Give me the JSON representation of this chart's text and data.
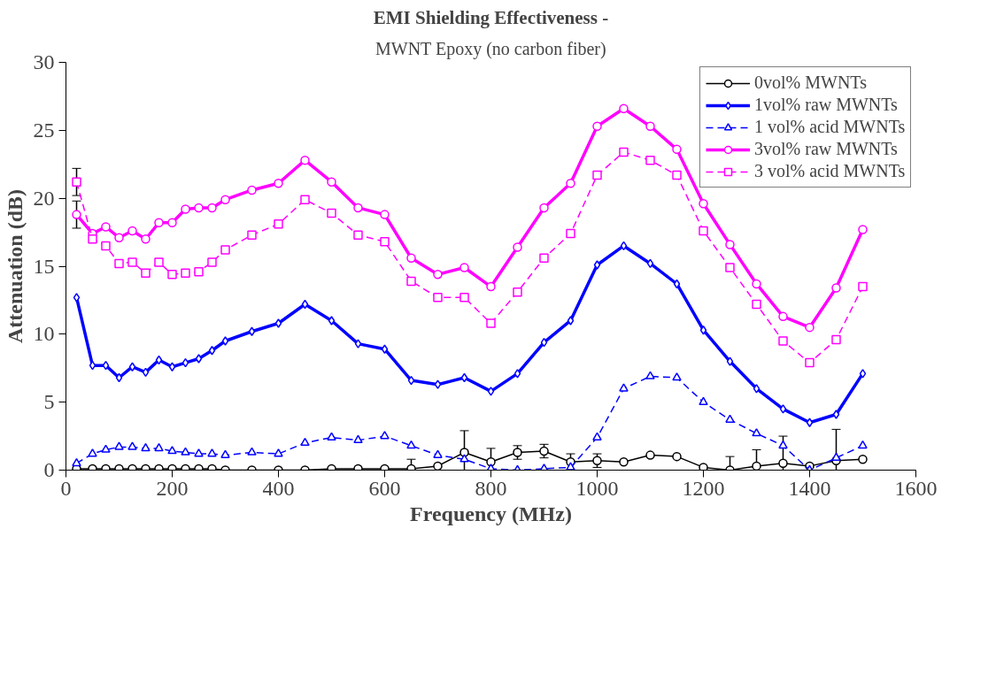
{
  "chart_data": {
    "type": "line",
    "title": "EMI Shielding Effectiveness -",
    "subtitle": "MWNT Epoxy (no carbon fiber)",
    "xlabel": "Frequency (MHz)",
    "ylabel": "Attenuation (dB)",
    "x": [
      20,
      50,
      75,
      100,
      125,
      150,
      175,
      200,
      225,
      250,
      275,
      300,
      350,
      400,
      450,
      500,
      550,
      600,
      650,
      700,
      750,
      800,
      850,
      900,
      950,
      1000,
      1050,
      1100,
      1150,
      1200,
      1250,
      1300,
      1350,
      1400,
      1450,
      1500
    ],
    "xlim": [
      0,
      1600
    ],
    "ylim": [
      0,
      30
    ],
    "xticks": [
      0,
      200,
      400,
      600,
      800,
      1000,
      1200,
      1400,
      1600
    ],
    "yticks": [
      0,
      5,
      10,
      15,
      20,
      25,
      30
    ],
    "grid": false,
    "legend": "top right",
    "series": [
      {
        "name": "0vol% MWNTs",
        "color": "#000000",
        "marker": "circle",
        "line_style": "solid",
        "values": [
          0.1,
          0.1,
          0.1,
          0.1,
          0.1,
          0.1,
          0.1,
          0.1,
          0.1,
          0.1,
          0.1,
          0.0,
          0.0,
          0.0,
          0.0,
          0.1,
          0.1,
          0.1,
          0.1,
          0.3,
          1.3,
          0.6,
          1.3,
          1.4,
          0.6,
          0.7,
          0.6,
          1.1,
          1.0,
          0.2,
          0.0,
          0.3,
          0.5,
          0.3,
          0.7,
          0.8
        ],
        "errors": [
          null,
          null,
          null,
          null,
          null,
          null,
          null,
          null,
          null,
          null,
          null,
          null,
          null,
          null,
          null,
          null,
          null,
          null,
          0.7,
          null,
          1.6,
          1.0,
          0.5,
          0.5,
          0.6,
          0.5,
          null,
          null,
          null,
          null,
          1.0,
          1.2,
          2.0,
          null,
          2.3,
          null
        ]
      },
      {
        "name": "1vol% raw MWNTs",
        "color": "#0000ff",
        "marker": "diamond",
        "line_style": "solid",
        "values": [
          12.7,
          7.7,
          7.7,
          6.8,
          7.6,
          7.2,
          8.1,
          7.6,
          7.9,
          8.2,
          8.8,
          9.5,
          10.2,
          10.8,
          12.2,
          11.0,
          9.3,
          8.9,
          6.6,
          6.3,
          6.8,
          5.8,
          7.1,
          9.4,
          11.0,
          15.1,
          16.5,
          15.2,
          13.7,
          10.3,
          8.0,
          6.0,
          4.5,
          3.5,
          4.1,
          7.1
        ]
      },
      {
        "name": "1 vol% acid MWNTs",
        "color": "#0000ff",
        "marker": "triangle",
        "line_style": "dashed",
        "values": [
          0.5,
          1.2,
          1.5,
          1.7,
          1.7,
          1.6,
          1.6,
          1.4,
          1.3,
          1.2,
          1.2,
          1.1,
          1.3,
          1.2,
          2.0,
          2.4,
          2.2,
          2.5,
          1.8,
          1.1,
          0.8,
          0.1,
          0.0,
          0.1,
          0.2,
          2.4,
          6.0,
          6.9,
          6.8,
          5.0,
          3.7,
          2.7,
          1.8,
          0.0,
          0.9,
          1.8
        ]
      },
      {
        "name": "3vol% raw MWNTs",
        "color": "#ff00ff",
        "marker": "circle",
        "line_style": "solid",
        "values": [
          18.8,
          17.4,
          17.9,
          17.1,
          17.6,
          17.0,
          18.2,
          18.2,
          19.2,
          19.3,
          19.3,
          19.9,
          20.6,
          21.1,
          22.8,
          21.2,
          19.3,
          18.8,
          15.6,
          14.4,
          14.9,
          13.5,
          16.4,
          19.3,
          21.1,
          25.3,
          26.6,
          25.3,
          23.6,
          19.6,
          16.6,
          13.7,
          11.3,
          10.5,
          13.4,
          17.7
        ],
        "errors": [
          1.0,
          null,
          null,
          null,
          null,
          null,
          null,
          null,
          null,
          null,
          null,
          null,
          null,
          null,
          null,
          null,
          null,
          null,
          null,
          null,
          null,
          null,
          null,
          null,
          null,
          null,
          null,
          null,
          null,
          null,
          null,
          null,
          null,
          null,
          null,
          null
        ]
      },
      {
        "name": "3 vol% acid MWNTs",
        "color": "#ff00ff",
        "marker": "square",
        "line_style": "dashed",
        "values": [
          21.2,
          17.0,
          16.5,
          15.2,
          15.3,
          14.5,
          15.3,
          14.4,
          14.5,
          14.6,
          15.3,
          16.2,
          17.3,
          18.1,
          19.9,
          18.9,
          17.3,
          16.8,
          13.9,
          12.7,
          12.7,
          10.8,
          13.1,
          15.6,
          17.4,
          21.7,
          23.4,
          22.8,
          21.7,
          17.6,
          14.9,
          12.2,
          9.5,
          7.9,
          9.6,
          13.5
        ],
        "errors": [
          1.0,
          null,
          null,
          null,
          null,
          null,
          null,
          null,
          null,
          null,
          null,
          null,
          null,
          null,
          null,
          null,
          null,
          null,
          null,
          null,
          null,
          null,
          null,
          null,
          null,
          null,
          null,
          null,
          null,
          null,
          null,
          null,
          null,
          null,
          null,
          null
        ]
      }
    ]
  }
}
